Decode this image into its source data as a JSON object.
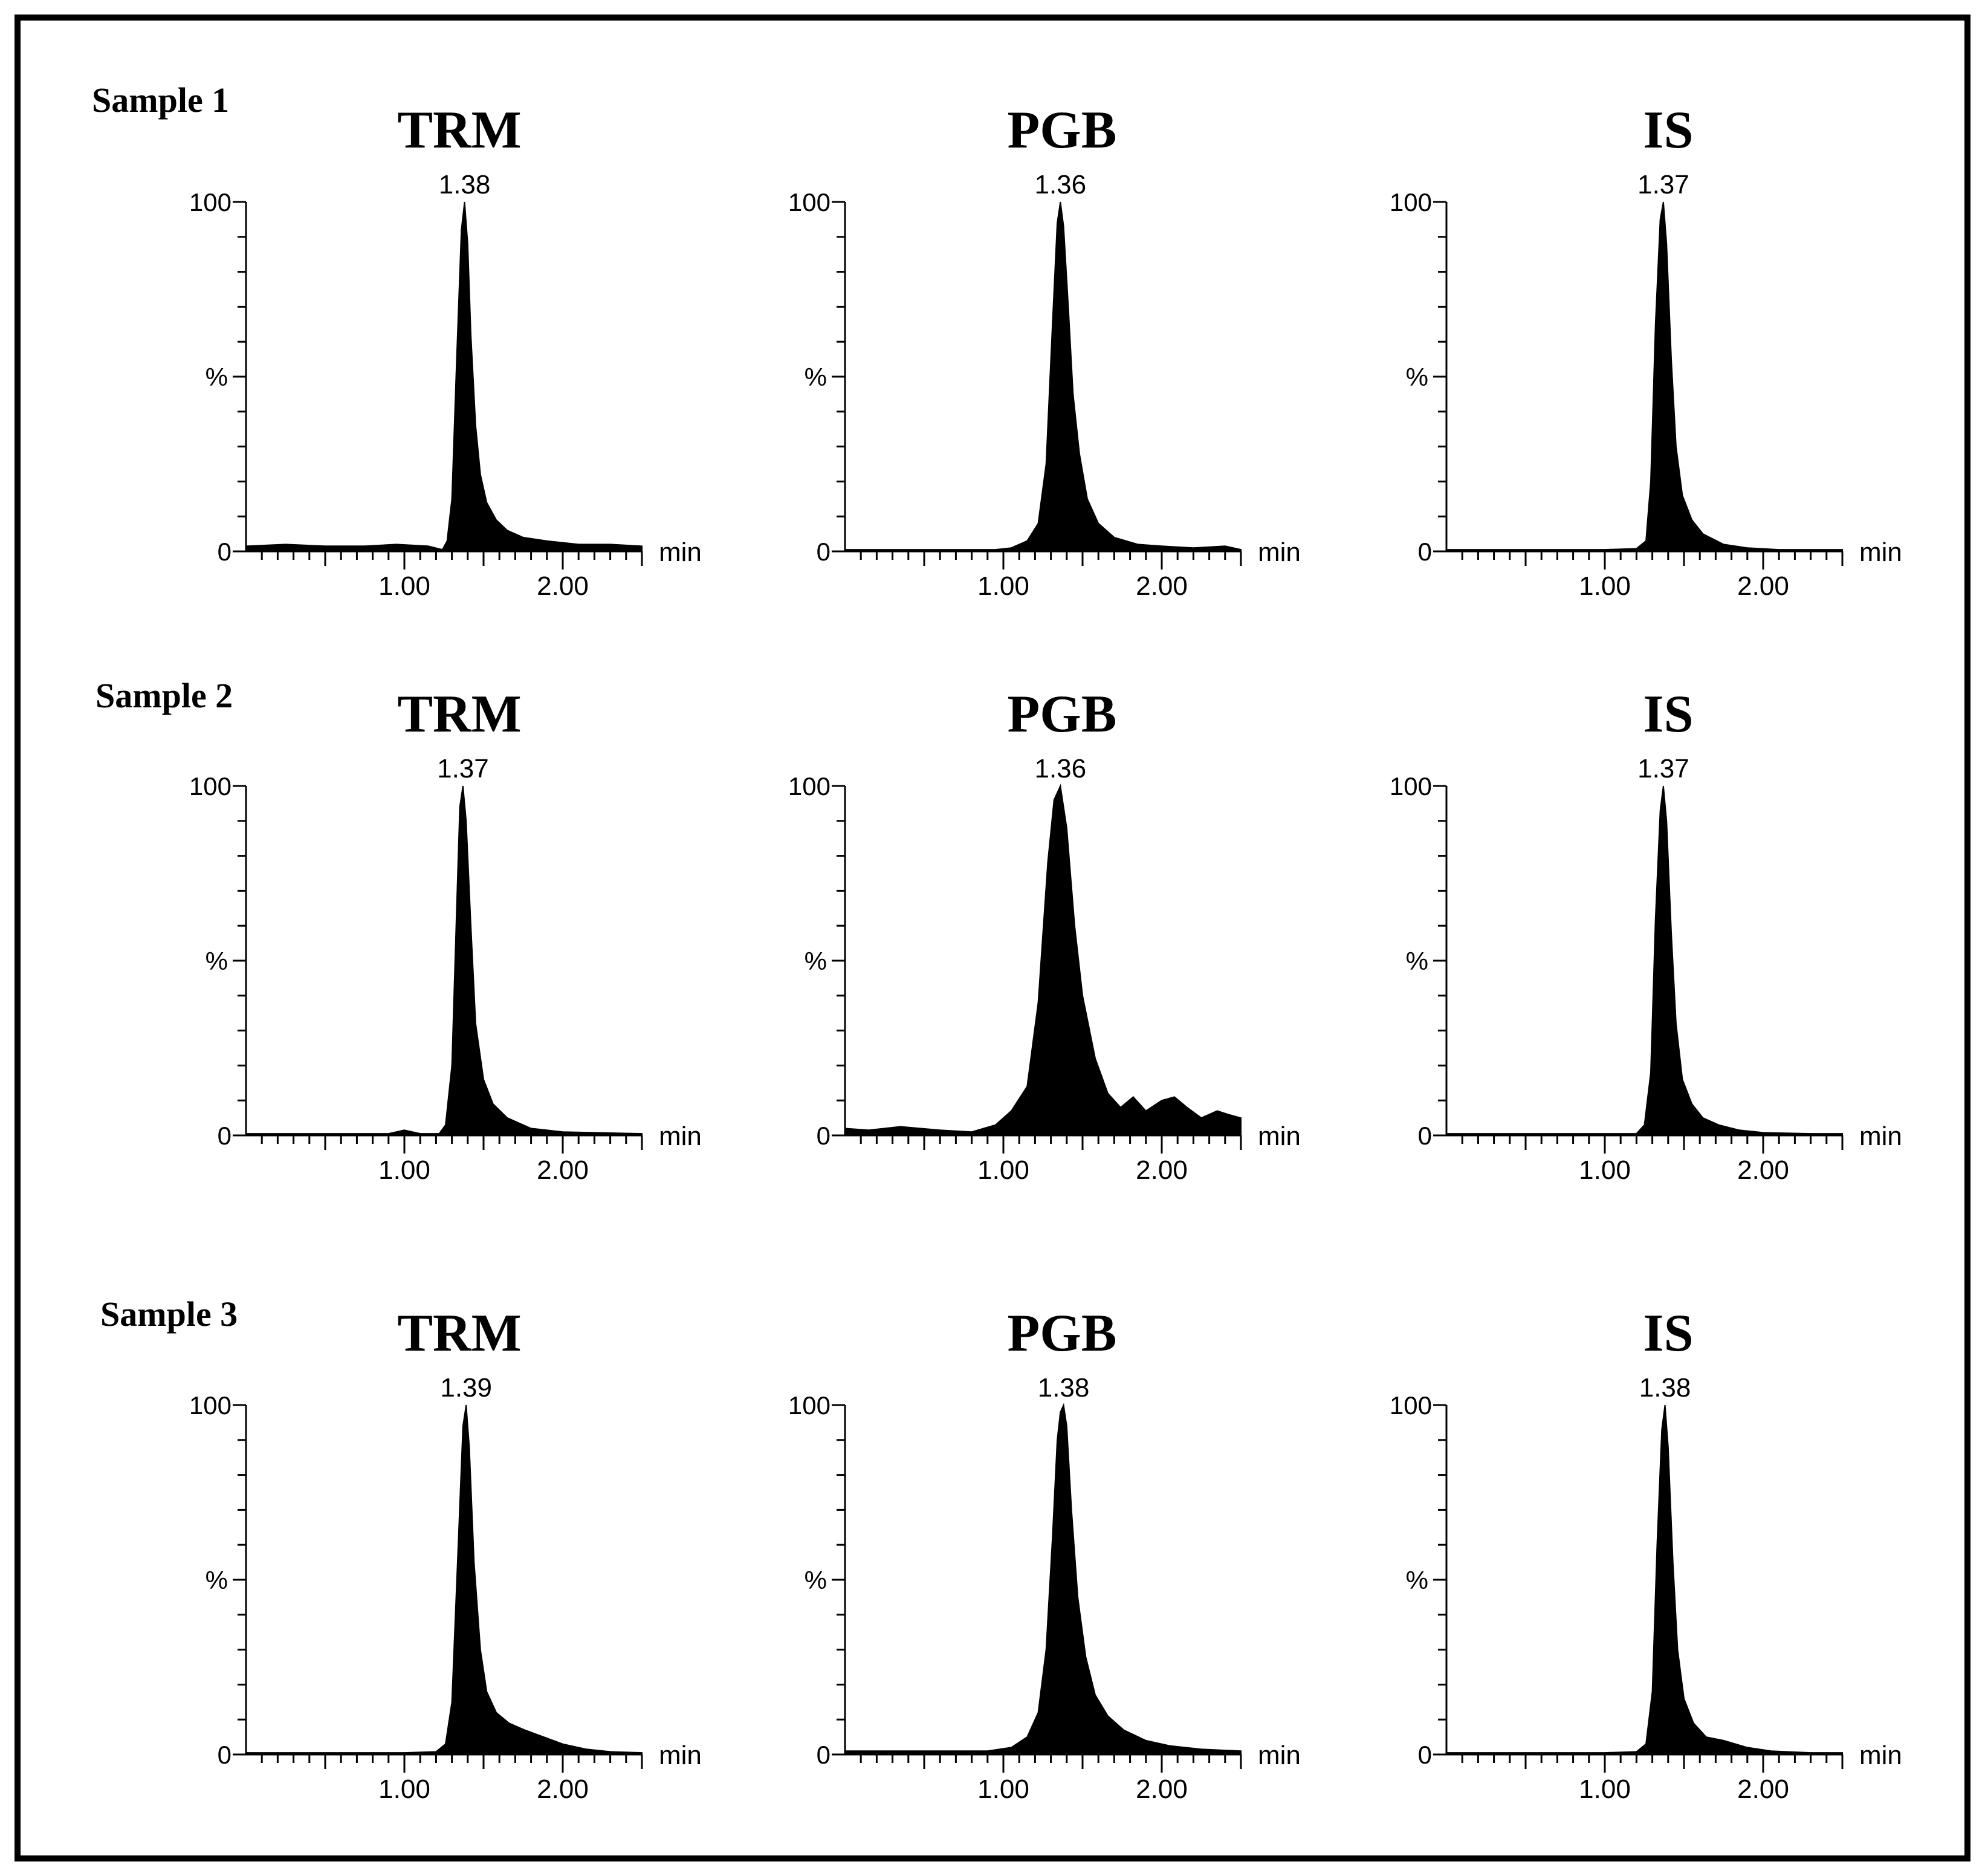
{
  "chart_data": [
    {
      "type": "area",
      "sample_label": "Sample 1",
      "title": "TRM",
      "peak_label": "1.38",
      "peak_rt": 1.38,
      "ylabel": "%",
      "xlabel": "min",
      "xlim": [
        0,
        2.5
      ],
      "ylim": [
        0,
        100
      ],
      "xticks": [
        "1.00",
        "2.00"
      ],
      "yticks": [
        "100",
        "0"
      ],
      "trace": {
        "x": [
          0.0,
          0.25,
          0.5,
          0.75,
          0.95,
          1.15,
          1.24,
          1.27,
          1.3,
          1.33,
          1.36,
          1.38,
          1.4,
          1.42,
          1.45,
          1.48,
          1.52,
          1.58,
          1.65,
          1.75,
          1.9,
          2.1,
          2.3,
          2.5
        ],
        "y": [
          1.5,
          2.0,
          1.5,
          1.5,
          2.0,
          1.5,
          0.5,
          3,
          15,
          55,
          92,
          100,
          88,
          62,
          36,
          22,
          14,
          9,
          6,
          4,
          3,
          2,
          2,
          1.5
        ]
      }
    },
    {
      "type": "area",
      "sample_label": "",
      "title": "PGB",
      "peak_label": "1.36",
      "peak_rt": 1.36,
      "ylabel": "%",
      "xlabel": "min",
      "xlim": [
        0,
        2.5
      ],
      "ylim": [
        0,
        100
      ],
      "xticks": [
        "1.00",
        "2.00"
      ],
      "yticks": [
        "100",
        "0"
      ],
      "trace": {
        "x": [
          0.0,
          0.5,
          0.95,
          1.05,
          1.15,
          1.22,
          1.27,
          1.31,
          1.34,
          1.36,
          1.38,
          1.41,
          1.44,
          1.48,
          1.53,
          1.6,
          1.7,
          1.85,
          2.0,
          2.2,
          2.4,
          2.5
        ],
        "y": [
          0.5,
          0.5,
          0.5,
          1,
          3,
          8,
          25,
          65,
          94,
          100,
          93,
          70,
          45,
          28,
          15,
          8,
          4,
          2,
          1.5,
          1,
          1.5,
          0.5
        ]
      }
    },
    {
      "type": "area",
      "sample_label": "",
      "title": "IS",
      "peak_label": "1.37",
      "peak_rt": 1.37,
      "ylabel": "%",
      "xlabel": "min",
      "xlim": [
        0,
        2.5
      ],
      "ylim": [
        0,
        100
      ],
      "xticks": [
        "1.00",
        "2.00"
      ],
      "yticks": [
        "100",
        "0"
      ],
      "trace": {
        "x": [
          0.0,
          0.5,
          1.0,
          1.2,
          1.26,
          1.29,
          1.32,
          1.35,
          1.37,
          1.39,
          1.42,
          1.45,
          1.49,
          1.55,
          1.62,
          1.75,
          1.9,
          2.1,
          2.5
        ],
        "y": [
          0.5,
          0.5,
          0.5,
          0.8,
          3,
          20,
          65,
          95,
          100,
          88,
          55,
          30,
          16,
          9,
          5,
          2,
          1,
          0.5,
          0.5
        ]
      }
    },
    {
      "type": "area",
      "sample_label": "Sample 2",
      "title": "TRM",
      "peak_label": "1.37",
      "peak_rt": 1.37,
      "ylabel": "%",
      "xlabel": "min",
      "xlim": [
        0,
        2.5
      ],
      "ylim": [
        0,
        100
      ],
      "xticks": [
        "1.00",
        "2.00"
      ],
      "yticks": [
        "100",
        "0"
      ],
      "trace": {
        "x": [
          0.0,
          0.5,
          0.9,
          1.0,
          1.1,
          1.22,
          1.26,
          1.3,
          1.33,
          1.35,
          1.37,
          1.39,
          1.42,
          1.45,
          1.5,
          1.56,
          1.65,
          1.8,
          2.0,
          2.2,
          2.5
        ],
        "y": [
          0.5,
          0.5,
          0.5,
          1.5,
          0.5,
          0.5,
          3,
          20,
          65,
          94,
          100,
          90,
          60,
          32,
          16,
          9,
          5,
          2,
          1,
          0.8,
          0.5
        ]
      }
    },
    {
      "type": "area",
      "sample_label": "",
      "title": "PGB",
      "peak_label": "1.36",
      "peak_rt": 1.36,
      "ylabel": "%",
      "xlabel": "min",
      "xlim": [
        0,
        2.5
      ],
      "ylim": [
        0,
        100
      ],
      "xticks": [
        "1.00",
        "2.00"
      ],
      "yticks": [
        "100",
        "0"
      ],
      "trace": {
        "x": [
          0.0,
          0.15,
          0.35,
          0.6,
          0.8,
          0.95,
          1.05,
          1.15,
          1.22,
          1.28,
          1.32,
          1.36,
          1.4,
          1.45,
          1.5,
          1.58,
          1.66,
          1.74,
          1.82,
          1.9,
          2.0,
          2.08,
          2.16,
          2.25,
          2.35,
          2.42,
          2.5
        ],
        "y": [
          2,
          1.5,
          2.5,
          1.5,
          1,
          3,
          7,
          14,
          38,
          78,
          96,
          100,
          88,
          60,
          40,
          22,
          12,
          8,
          11,
          7,
          10,
          11,
          8,
          5,
          7,
          6,
          5
        ]
      }
    },
    {
      "type": "area",
      "sample_label": "",
      "title": "IS",
      "peak_label": "1.37",
      "peak_rt": 1.37,
      "ylabel": "%",
      "xlabel": "min",
      "xlim": [
        0,
        2.5
      ],
      "ylim": [
        0,
        100
      ],
      "xticks": [
        "1.00",
        "2.00"
      ],
      "yticks": [
        "100",
        "0"
      ],
      "trace": {
        "x": [
          0.0,
          0.5,
          1.0,
          1.2,
          1.25,
          1.29,
          1.32,
          1.35,
          1.37,
          1.39,
          1.42,
          1.45,
          1.49,
          1.55,
          1.62,
          1.72,
          1.85,
          2.0,
          2.3,
          2.5
        ],
        "y": [
          0.5,
          0.5,
          0.5,
          0.5,
          3,
          18,
          62,
          93,
          100,
          90,
          58,
          32,
          16,
          9,
          5,
          3,
          1.5,
          0.8,
          0.5,
          0.5
        ]
      }
    },
    {
      "type": "area",
      "sample_label": "Sample 3",
      "title": "TRM",
      "peak_label": "1.39",
      "peak_rt": 1.39,
      "ylabel": "%",
      "xlabel": "min",
      "xlim": [
        0,
        2.5
      ],
      "ylim": [
        0,
        100
      ],
      "xticks": [
        "1.00",
        "2.00"
      ],
      "yticks": [
        "100",
        "0"
      ],
      "trace": {
        "x": [
          0.0,
          0.5,
          1.0,
          1.2,
          1.26,
          1.3,
          1.34,
          1.37,
          1.39,
          1.41,
          1.44,
          1.48,
          1.52,
          1.58,
          1.66,
          1.76,
          1.88,
          2.0,
          2.15,
          2.3,
          2.5
        ],
        "y": [
          0.5,
          0.5,
          0.5,
          0.8,
          3,
          15,
          60,
          94,
          100,
          88,
          55,
          30,
          18,
          12,
          9,
          7,
          5,
          3,
          1.5,
          0.8,
          0.5
        ]
      }
    },
    {
      "type": "area",
      "sample_label": "",
      "title": "PGB",
      "peak_label": "1.38",
      "peak_rt": 1.38,
      "ylabel": "%",
      "xlabel": "min",
      "xlim": [
        0,
        2.5
      ],
      "ylim": [
        0,
        100
      ],
      "xticks": [
        "1.00",
        "2.00"
      ],
      "yticks": [
        "100",
        "0"
      ],
      "trace": {
        "x": [
          0.0,
          0.5,
          0.9,
          1.05,
          1.15,
          1.22,
          1.27,
          1.31,
          1.34,
          1.36,
          1.38,
          1.4,
          1.43,
          1.47,
          1.52,
          1.58,
          1.66,
          1.76,
          1.9,
          2.05,
          2.25,
          2.5
        ],
        "y": [
          1,
          1,
          1,
          2,
          5,
          12,
          30,
          62,
          90,
          98,
          100,
          94,
          70,
          45,
          28,
          17,
          11,
          7,
          4,
          2.5,
          1.5,
          1
        ]
      }
    },
    {
      "type": "area",
      "sample_label": "",
      "title": "IS",
      "peak_label": "1.38",
      "peak_rt": 1.38,
      "ylabel": "%",
      "xlabel": "min",
      "xlim": [
        0,
        2.5
      ],
      "ylim": [
        0,
        100
      ],
      "xticks": [
        "1.00",
        "2.00"
      ],
      "yticks": [
        "100",
        "0"
      ],
      "trace": {
        "x": [
          0.0,
          0.5,
          1.0,
          1.2,
          1.26,
          1.3,
          1.33,
          1.36,
          1.38,
          1.4,
          1.43,
          1.46,
          1.5,
          1.56,
          1.64,
          1.75,
          1.9,
          2.05,
          2.3,
          2.5
        ],
        "y": [
          0.5,
          0.5,
          0.5,
          0.8,
          3,
          18,
          60,
          93,
          100,
          88,
          55,
          30,
          16,
          9,
          5,
          4,
          2,
          1,
          0.5,
          0.5
        ]
      }
    }
  ]
}
